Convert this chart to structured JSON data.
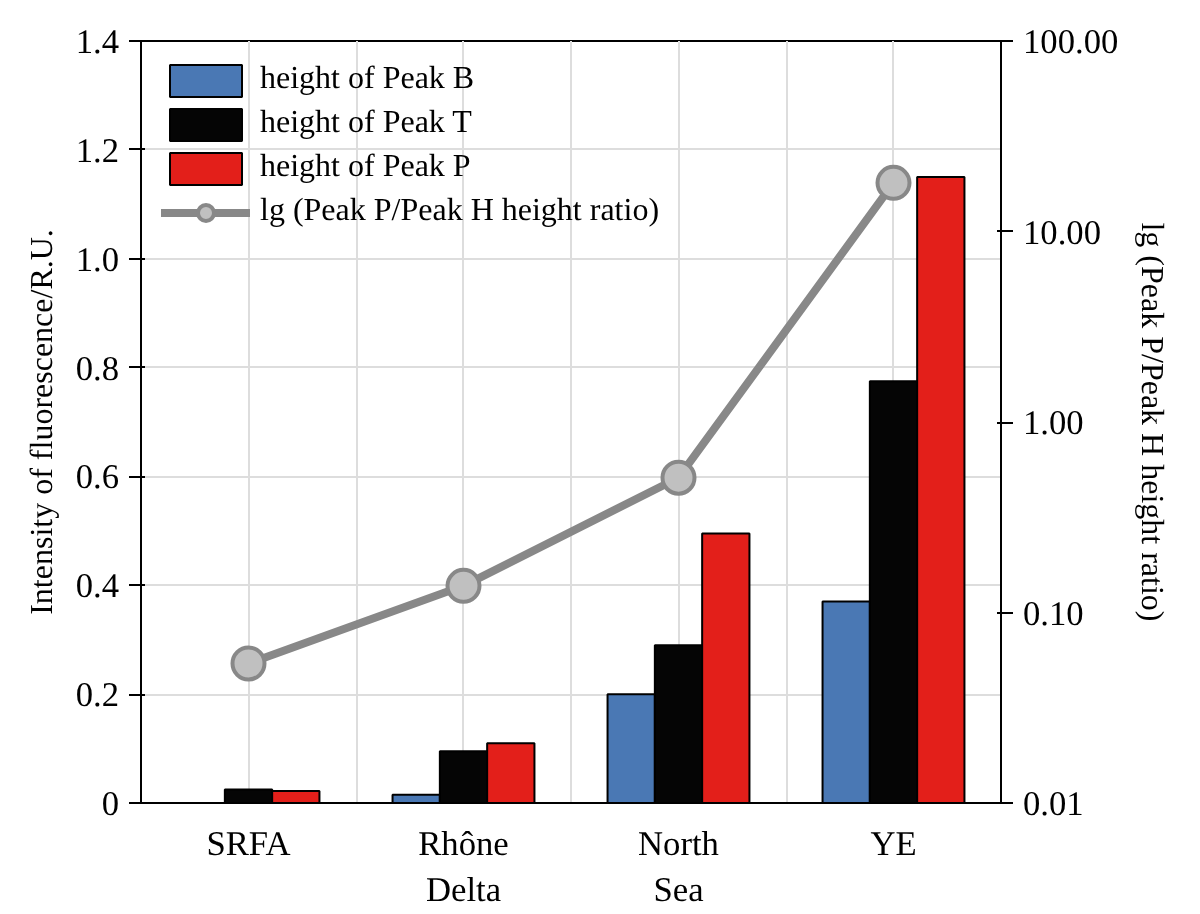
{
  "chart_data": {
    "type": "bar",
    "ylabel": "Intensity of fluorescence/R.U.",
    "y2label": "lg (Peak P/Peak H height ratio)",
    "categories": [
      "SRFA",
      "Rhône\nDelta",
      "North\nSea",
      "YE"
    ],
    "series": [
      {
        "name": "height of Peak B",
        "color": "#4a78b4",
        "values": [
          null,
          0.015,
          0.2,
          0.37
        ]
      },
      {
        "name": "height of Peak T",
        "color": "#050505",
        "values": [
          0.025,
          0.095,
          0.29,
          0.775
        ]
      },
      {
        "name": "height of Peak P",
        "color": "#e31f1a",
        "values": [
          0.022,
          0.11,
          0.495,
          1.15
        ]
      },
      {
        "name": "lg (Peak P/Peak H height ratio)",
        "type": "line",
        "axis": "y2",
        "color": "#888888",
        "marker": "circle",
        "values": [
          0.054,
          0.138,
          0.51,
          18
        ]
      }
    ],
    "ylim": [
      0,
      1.4
    ],
    "yticks": [
      0,
      0.2,
      0.4,
      0.6,
      0.8,
      {
        "value": 1,
        "label": "1.0"
      },
      1.2,
      1.4
    ],
    "y2lim": [
      0.01,
      100
    ],
    "y2ticks": [
      {
        "value": 0.01,
        "label": "0.01"
      },
      {
        "value": 0.1,
        "label": "0.10"
      },
      {
        "value": 1,
        "label": "1.00"
      },
      {
        "value": 10,
        "label": "10.00"
      },
      {
        "value": 100,
        "label": "100.00"
      }
    ],
    "log": "y2",
    "grid": true,
    "legend": "top left"
  }
}
